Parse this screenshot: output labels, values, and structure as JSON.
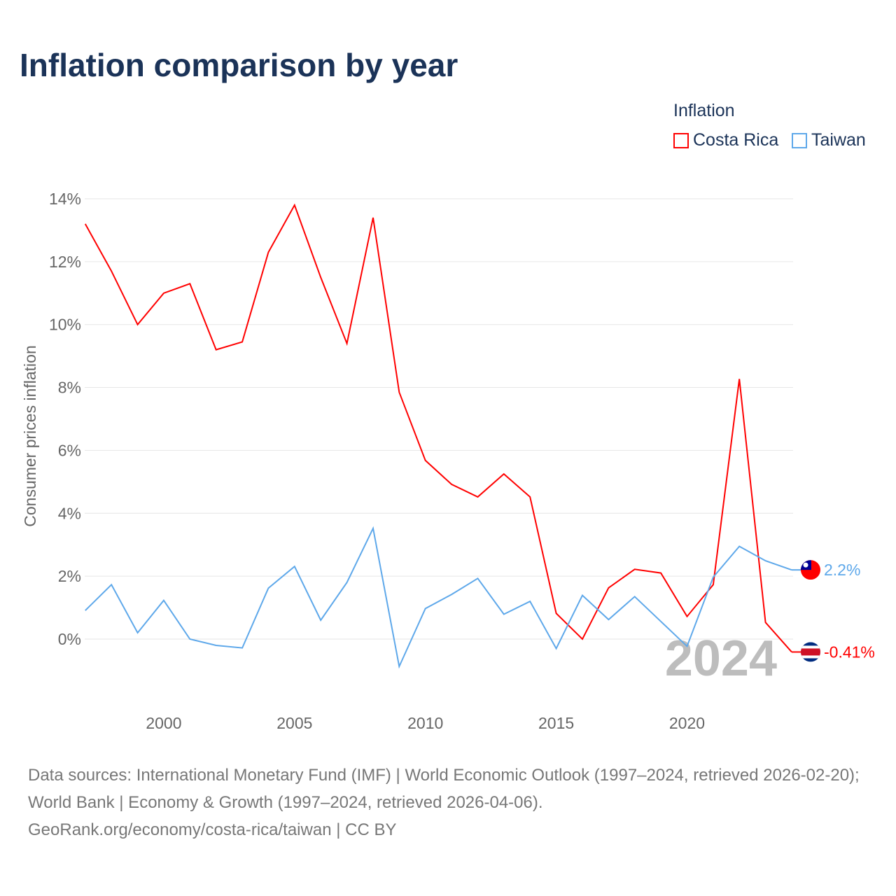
{
  "chart_data": {
    "type": "line",
    "title": "Inflation comparison by year",
    "legend_title": "Inflation",
    "legend_position": "top-right",
    "xlabel": "",
    "ylabel": "Consumer prices inflation",
    "xlim": [
      1997,
      2024
    ],
    "ylim": [
      -2,
      14.5
    ],
    "yticks": [
      0,
      2,
      4,
      6,
      8,
      10,
      12,
      14
    ],
    "ytick_labels": [
      "0%",
      "2%",
      "4%",
      "6%",
      "8%",
      "10%",
      "12%",
      "14%"
    ],
    "xticks": [
      2000,
      2005,
      2010,
      2015,
      2020
    ],
    "xtick_labels": [
      "2000",
      "2005",
      "2010",
      "2015",
      "2020"
    ],
    "grid": true,
    "year_watermark": "2024",
    "x": [
      1997,
      1998,
      1999,
      2000,
      2001,
      2002,
      2003,
      2004,
      2005,
      2006,
      2007,
      2008,
      2009,
      2010,
      2011,
      2012,
      2013,
      2014,
      2015,
      2016,
      2017,
      2018,
      2019,
      2020,
      2021,
      2022,
      2023,
      2024
    ],
    "series": [
      {
        "name": "Costa Rica",
        "color": "#ff0000",
        "end_label": "-0.41%",
        "values": [
          13.2,
          11.7,
          10.0,
          11.0,
          11.3,
          9.2,
          9.45,
          12.3,
          13.8,
          11.5,
          9.4,
          13.4,
          7.85,
          5.68,
          4.92,
          4.52,
          5.25,
          4.52,
          0.82,
          0.0,
          1.63,
          2.22,
          2.1,
          0.72,
          1.73,
          8.27,
          0.53,
          -0.41
        ]
      },
      {
        "name": "Taiwan",
        "color": "#5ea8ea",
        "end_label": "2.2%",
        "values": [
          0.91,
          1.73,
          0.2,
          1.23,
          0.0,
          -0.2,
          -0.28,
          1.62,
          2.31,
          0.6,
          1.8,
          3.52,
          -0.87,
          0.97,
          1.42,
          1.93,
          0.79,
          1.2,
          -0.3,
          1.39,
          0.62,
          1.35,
          0.56,
          -0.23,
          1.97,
          2.95,
          2.49,
          2.2
        ]
      }
    ]
  },
  "footer": {
    "sources": "Data sources: International Monetary Fund (IMF) | World Economic Outlook (1997–2024, retrieved 2026-02-20); World Bank | Economy & Growth (1997–2024, retrieved 2026-04-06).",
    "link": "GeoRank.org/economy/costa-rica/taiwan | CC BY"
  }
}
